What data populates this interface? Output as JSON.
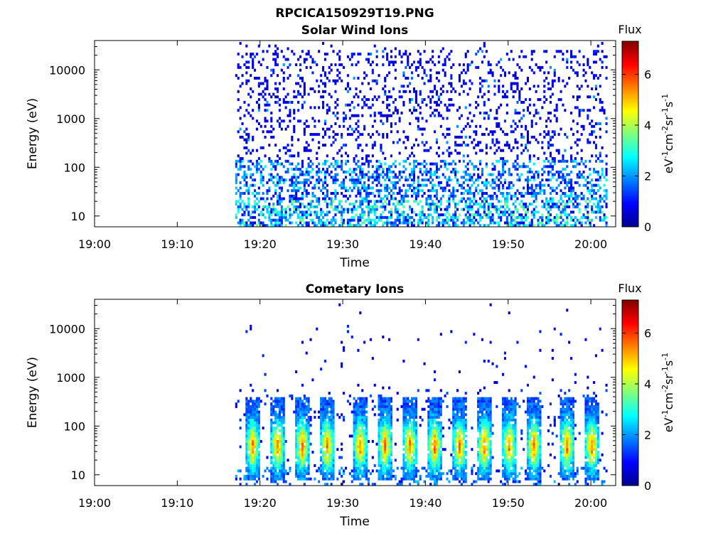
{
  "figure_title": "RPCICA150929T19.PNG",
  "colors": {
    "background": "#ffffff",
    "axis": "#000000",
    "colormap": "jet"
  },
  "chart_data": [
    {
      "type": "heatmap",
      "title": "Solar Wind Ions",
      "xlabel": "Time",
      "ylabel": "Energy (eV)",
      "x_range": [
        "19:00",
        "20:03"
      ],
      "x_ticks": [
        "19:00",
        "19:10",
        "19:20",
        "19:30",
        "19:40",
        "19:50",
        "20:00"
      ],
      "y_scale": "log",
      "y_range": [
        6,
        40000
      ],
      "y_ticks": [
        10,
        100,
        1000,
        10000
      ],
      "y_tick_labels": [
        "10",
        "100",
        "1000",
        "10000"
      ],
      "data_start": "19:17",
      "data_end": "20:02",
      "colorbar": {
        "label": "Flux",
        "unit": "eV-1cm-2sr-1s-1",
        "range": [
          0,
          7.3
        ],
        "ticks": [
          0,
          2,
          4,
          6
        ],
        "tick_labels": [
          "0",
          "2",
          "4",
          "6"
        ]
      },
      "description_of_values": "sparse low flux (0-1) across 20 eV-30 keV; moderate flux (1-3.5) below ~200 eV"
    },
    {
      "type": "heatmap",
      "title": "Cometary Ions",
      "xlabel": "Time",
      "ylabel": "Energy (eV)",
      "x_range": [
        "19:00",
        "20:03"
      ],
      "x_ticks": [
        "19:00",
        "19:10",
        "19:20",
        "19:30",
        "19:40",
        "19:50",
        "20:00"
      ],
      "y_scale": "log",
      "y_range": [
        6,
        40000
      ],
      "y_ticks": [
        10,
        100,
        1000,
        10000
      ],
      "y_tick_labels": [
        "10",
        "100",
        "1000",
        "10000"
      ],
      "data_start": "19:17",
      "data_end": "20:02",
      "burst_times": [
        "19:19",
        "19:22",
        "19:25",
        "19:28",
        "19:32",
        "19:35",
        "19:38",
        "19:41",
        "19:44",
        "19:47",
        "19:50",
        "19:53",
        "19:57",
        "20:00"
      ],
      "burst_peak_energy_eV": 40,
      "burst_peak_flux": 5.5,
      "colorbar": {
        "label": "Flux",
        "unit": "eV-1cm-2sr-1s-1",
        "range": [
          0,
          7.3
        ],
        "ticks": [
          0,
          2,
          4,
          6
        ],
        "tick_labels": [
          "0",
          "2",
          "4",
          "6"
        ]
      }
    }
  ]
}
